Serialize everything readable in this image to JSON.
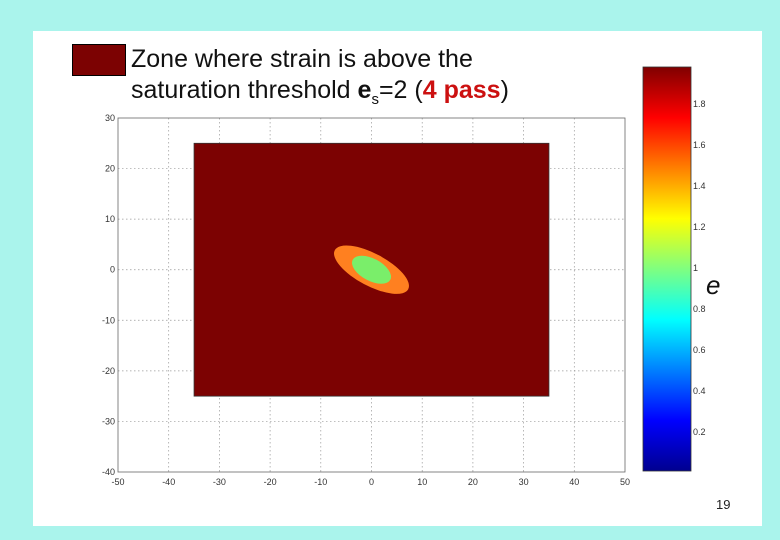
{
  "legend": {
    "color": "#7c0202",
    "line1": "Zone where strain is above the",
    "line2_prefix": "saturation threshold ",
    "symbol": "e",
    "subscript": "s",
    "value": "=2 (",
    "pass": "4 pass",
    "close": ")"
  },
  "chart_data": {
    "type": "heatmap",
    "x_ticks": [
      "-50",
      "-40",
      "-30",
      "-20",
      "-10",
      "0",
      "10",
      "20",
      "30",
      "40",
      "50"
    ],
    "y_ticks": [
      "30",
      "20",
      "10",
      "0",
      "-10",
      "-20",
      "-30",
      "-40"
    ],
    "xlim": [
      -50,
      50
    ],
    "ylim": [
      -40,
      30
    ],
    "grid": true,
    "domain": {
      "x": [
        -35,
        35
      ],
      "y": [
        -25,
        25
      ]
    },
    "zones": [
      {
        "name": "saturated",
        "color": "#7c0202",
        "region": "rectangle"
      },
      {
        "name": "orange",
        "color": "#ff8020",
        "center": [
          0,
          0
        ],
        "rx": 8.2,
        "ry": 3.2,
        "angle": -28
      },
      {
        "name": "green",
        "color": "#7aee6a",
        "center": [
          0,
          0
        ],
        "rx": 4.2,
        "ry": 2.2,
        "angle": -28
      }
    ],
    "colorbar": {
      "symbol": "e",
      "ticks": [
        "1.8",
        "1.6",
        "1.4",
        "1.2",
        "1",
        "0.8",
        "0.6",
        "0.4",
        "0.2"
      ]
    }
  },
  "page_number": "19"
}
